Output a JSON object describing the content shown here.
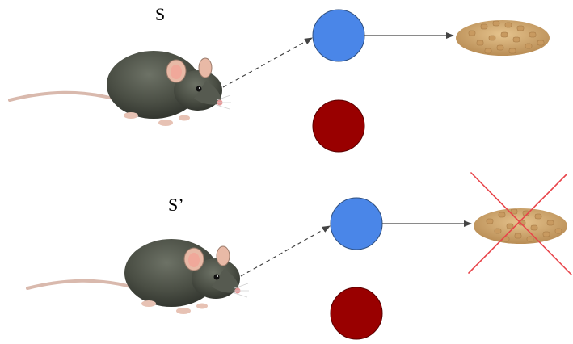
{
  "scenarios": [
    {
      "id": "top",
      "label": "S",
      "food_available": true
    },
    {
      "id": "bottom",
      "label": "S’",
      "food_available": false
    }
  ],
  "colors": {
    "blue_circle": "#4a86e8",
    "red_circle": "#990000",
    "arrow": "#444444",
    "cross": "#e8444a",
    "food": "#d8b27a"
  },
  "icons": {
    "rat": "rat-icon",
    "food": "food-pellets-icon",
    "cross": "cross-out-icon"
  }
}
